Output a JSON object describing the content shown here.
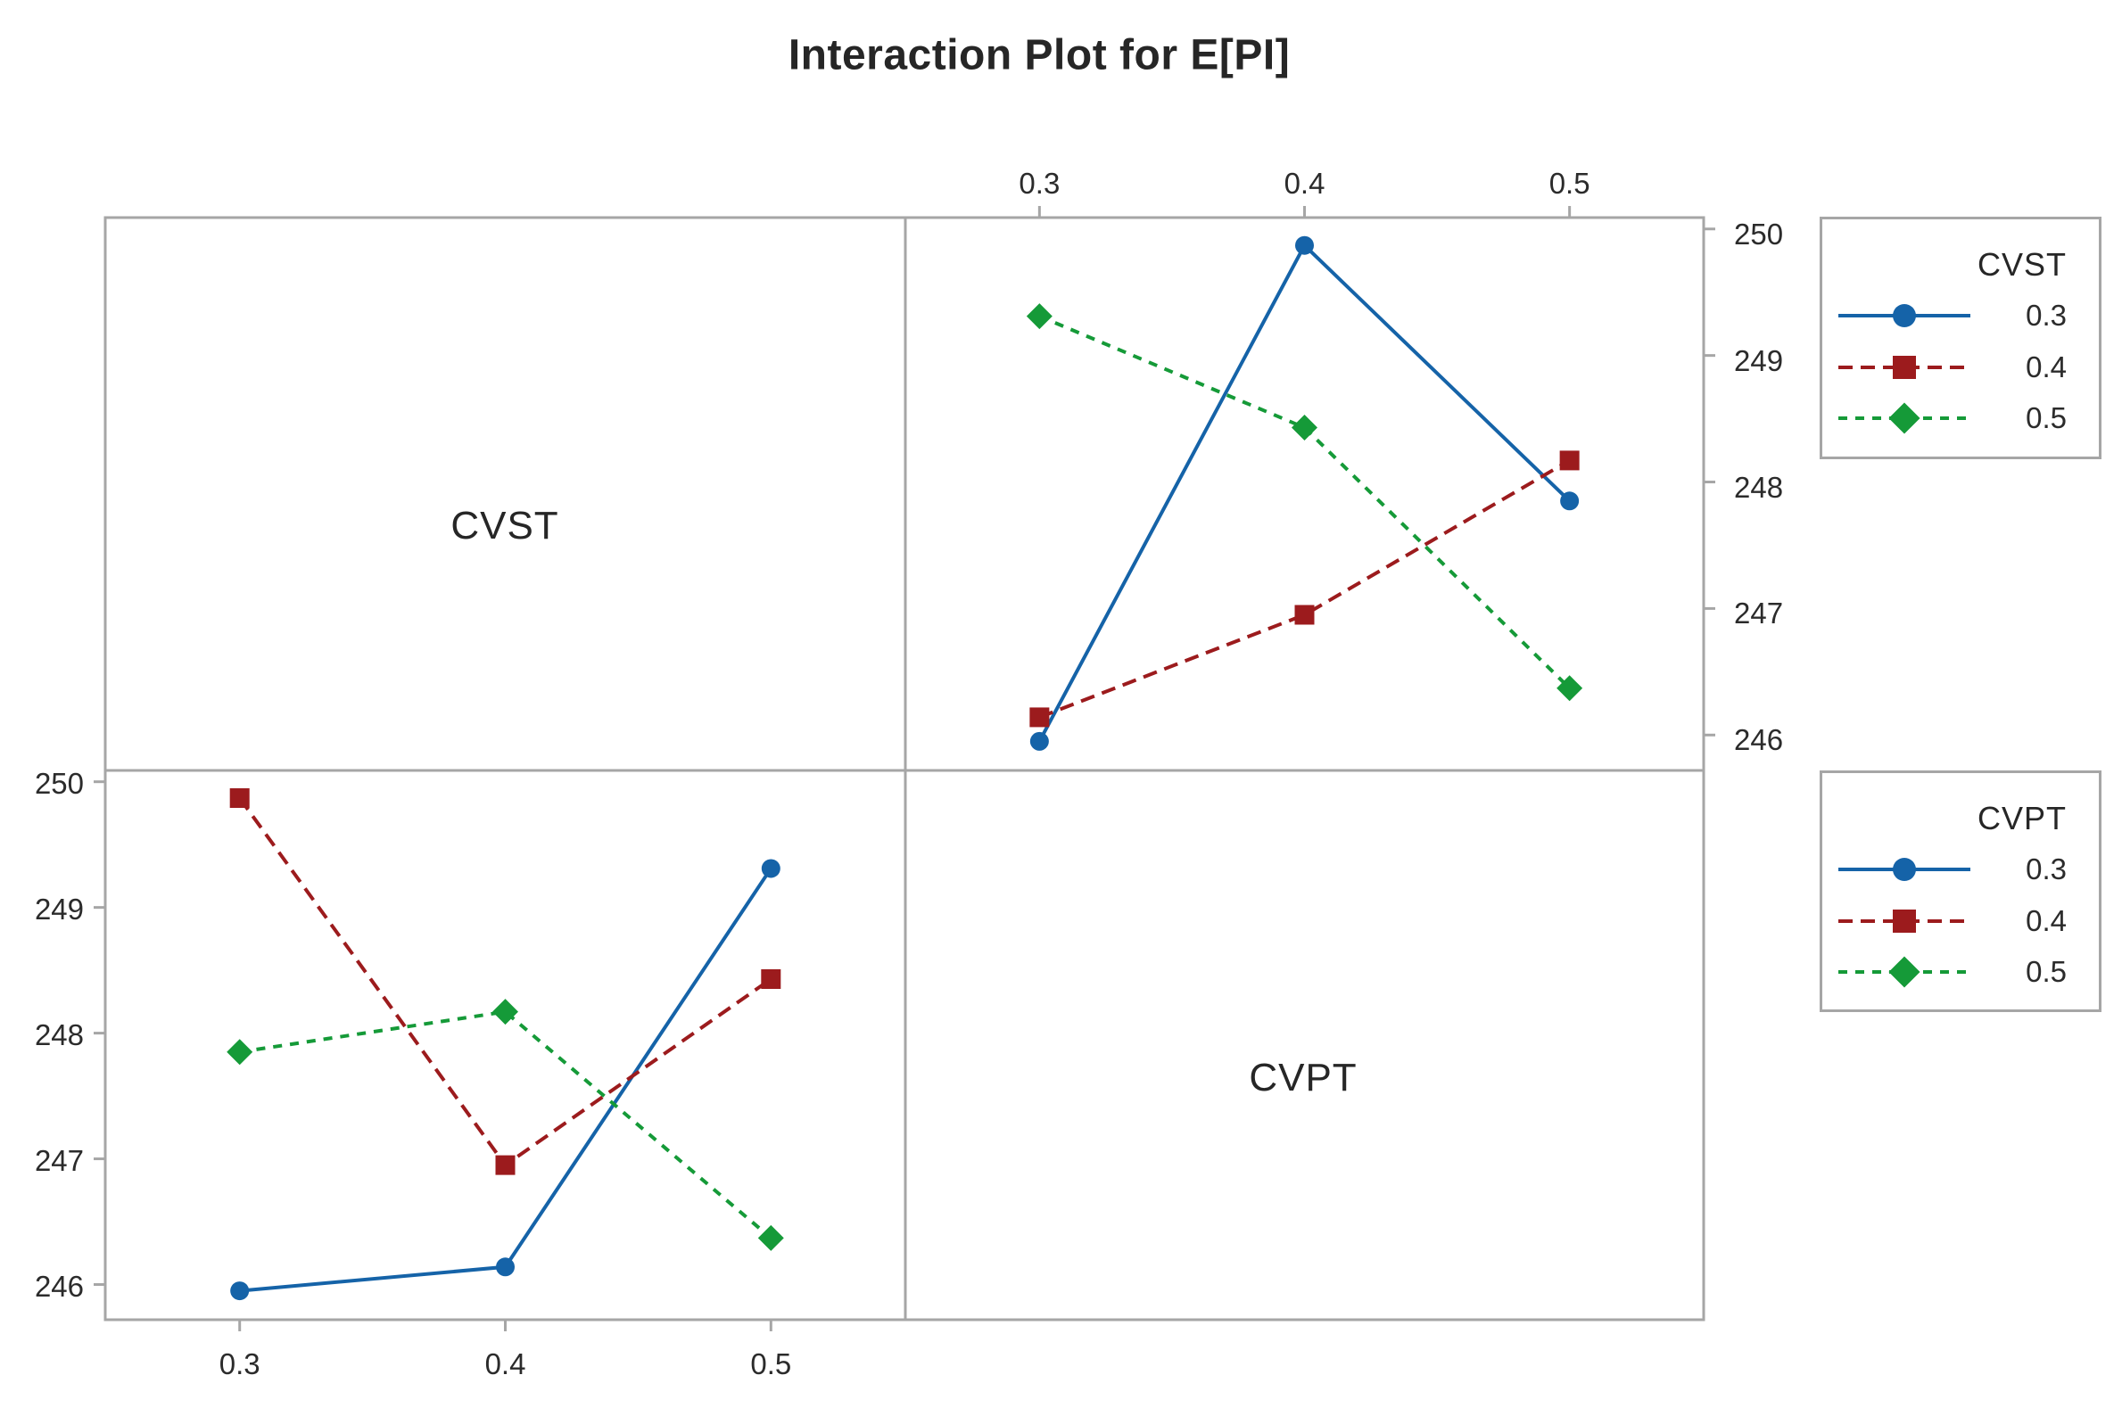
{
  "title": "Interaction Plot for E[PI]",
  "panel_labels": {
    "top_left": "CVST",
    "bottom_right": "CVPT"
  },
  "axes": {
    "top": {
      "ticks": [
        "0.3",
        "0.4",
        "0.5"
      ]
    },
    "bottom": {
      "ticks": [
        "0.3",
        "0.4",
        "0.5"
      ]
    },
    "left": {
      "ticks": [
        "250",
        "249",
        "248",
        "247",
        "246"
      ]
    },
    "right": {
      "ticks": [
        "250",
        "249",
        "248",
        "247",
        "246"
      ]
    }
  },
  "legends": [
    {
      "title": "CVST",
      "entries": [
        {
          "label": "0.3",
          "color": "#1563a8",
          "marker": "circle",
          "dash": "solid"
        },
        {
          "label": "0.4",
          "color": "#9c1b1d",
          "marker": "square",
          "dash": "long-dash"
        },
        {
          "label": "0.5",
          "color": "#159a38",
          "marker": "diamond",
          "dash": "dash"
        }
      ]
    },
    {
      "title": "CVPT",
      "entries": [
        {
          "label": "0.3",
          "color": "#1563a8",
          "marker": "circle",
          "dash": "solid"
        },
        {
          "label": "0.4",
          "color": "#9c1b1d",
          "marker": "square",
          "dash": "long-dash"
        },
        {
          "label": "0.5",
          "color": "#159a38",
          "marker": "diamond",
          "dash": "dash"
        }
      ]
    }
  ],
  "chart_data": {
    "type": "line",
    "title": "Interaction Plot for E[PI]",
    "response": "E[PI]",
    "factors": [
      "CVST",
      "CVPT"
    ],
    "levels": [
      0.3,
      0.4,
      0.5
    ],
    "cell_means_rows_CVST_cols_CVPT": [
      [
        245.95,
        249.87,
        247.85
      ],
      [
        246.14,
        246.95,
        248.17
      ],
      [
        249.31,
        248.43,
        246.37
      ]
    ],
    "ylim": [
      245.72,
      250.09
    ],
    "yticks": [
      250,
      249,
      248,
      247,
      246
    ],
    "grid": false,
    "legend_position": "right",
    "panels": [
      {
        "position": "top-right",
        "x_factor": "CVPT",
        "series_factor": "CVST",
        "x": [
          0.3,
          0.4,
          0.5
        ],
        "series": [
          {
            "name": "0.3",
            "values": [
              245.95,
              249.87,
              247.85
            ]
          },
          {
            "name": "0.4",
            "values": [
              246.14,
              246.95,
              248.17
            ]
          },
          {
            "name": "0.5",
            "values": [
              249.31,
              248.43,
              246.37
            ]
          }
        ]
      },
      {
        "position": "bottom-left",
        "x_factor": "CVST",
        "series_factor": "CVPT",
        "x": [
          0.3,
          0.4,
          0.5
        ],
        "series": [
          {
            "name": "0.3",
            "values": [
              245.95,
              246.14,
              249.31
            ]
          },
          {
            "name": "0.4",
            "values": [
              249.87,
              246.95,
              248.43
            ]
          },
          {
            "name": "0.5",
            "values": [
              247.85,
              248.17,
              246.37
            ]
          }
        ]
      }
    ]
  },
  "styles": {
    "frame_color": "#a6a6a6",
    "text_color": "#262626"
  }
}
